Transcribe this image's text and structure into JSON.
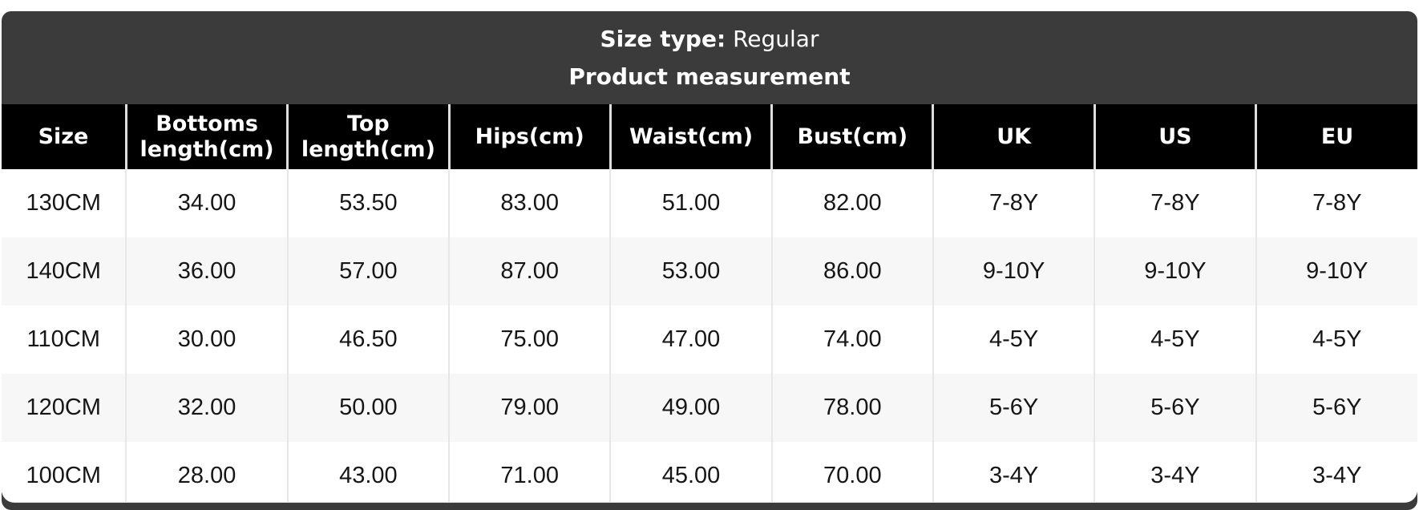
{
  "card": {
    "size_type_label": "Size type:",
    "size_type_value": "Regular",
    "subtitle": "Product measurement"
  },
  "table": {
    "columns": [
      "Size",
      "Bottoms length(cm)",
      "Top length(cm)",
      "Hips(cm)",
      "Waist(cm)",
      "Bust(cm)",
      "UK",
      "US",
      "EU"
    ],
    "rows": [
      [
        "130CM",
        "34.00",
        "53.50",
        "83.00",
        "51.00",
        "82.00",
        "7-8Y",
        "7-8Y",
        "7-8Y"
      ],
      [
        "140CM",
        "36.00",
        "57.00",
        "87.00",
        "53.00",
        "86.00",
        "9-10Y",
        "9-10Y",
        "9-10Y"
      ],
      [
        "110CM",
        "30.00",
        "46.50",
        "75.00",
        "47.00",
        "74.00",
        "4-5Y",
        "4-5Y",
        "4-5Y"
      ],
      [
        "120CM",
        "32.00",
        "50.00",
        "79.00",
        "49.00",
        "78.00",
        "5-6Y",
        "5-6Y",
        "5-6Y"
      ],
      [
        "100CM",
        "28.00",
        "43.00",
        "71.00",
        "45.00",
        "70.00",
        "3-4Y",
        "3-4Y",
        "3-4Y"
      ]
    ]
  },
  "colors": {
    "card_bg": "#3b3b3b",
    "header_bg": "#000000",
    "header_text": "#ffffff",
    "row_bg": "#ffffff",
    "row_alt_bg": "#f7f7f7",
    "divider": "#e7e7e7",
    "body_text": "#161616"
  }
}
